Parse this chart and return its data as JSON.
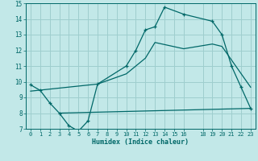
{
  "xlabel": "Humidex (Indice chaleur)",
  "bg_color": "#c2e8e8",
  "grid_color": "#9ecece",
  "line_color": "#006868",
  "xlim": [
    -0.5,
    23.5
  ],
  "ylim": [
    7,
    15
  ],
  "xticks": [
    0,
    1,
    2,
    3,
    4,
    5,
    6,
    7,
    8,
    9,
    10,
    11,
    12,
    13,
    14,
    15,
    16,
    18,
    19,
    20,
    21,
    22,
    23
  ],
  "yticks": [
    7,
    8,
    9,
    10,
    11,
    12,
    13,
    14,
    15
  ],
  "line1_x": [
    0,
    1,
    2,
    3,
    4,
    5,
    6,
    7,
    10,
    11,
    12,
    13,
    14,
    16,
    19,
    20,
    21,
    22,
    23
  ],
  "line1_y": [
    9.8,
    9.45,
    8.65,
    8.0,
    7.2,
    6.85,
    7.5,
    9.85,
    11.0,
    12.0,
    13.3,
    13.5,
    14.75,
    14.3,
    13.85,
    13.0,
    11.0,
    9.65,
    8.3
  ],
  "line2_x": [
    3,
    23
  ],
  "line2_y": [
    8.0,
    8.3
  ],
  "line3_x": [
    0,
    7,
    10,
    12,
    13,
    16,
    19,
    20,
    23
  ],
  "line3_y": [
    9.4,
    9.85,
    10.5,
    11.5,
    12.5,
    12.1,
    12.4,
    12.25,
    9.65
  ]
}
